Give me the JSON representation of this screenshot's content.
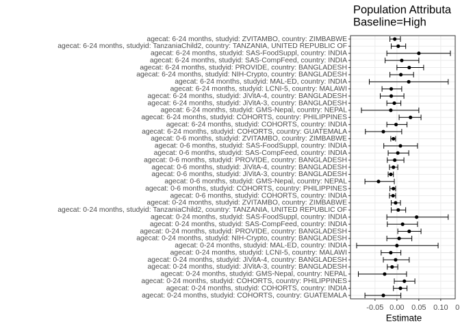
{
  "chart_data": {
    "type": "forest",
    "title": "Population Attributa",
    "subtitle": "Baseline=High",
    "xlabel": "Estimate",
    "categories": [
      "agecat: 6-24 months, studyid: ZVITAMBO, country: ZIMBABWE",
      "agecat: 6-24 months, studyid: TanzaniaChild2, country: TANZANIA, UNITED REPUBLIC OF",
      "agecat: 6-24 months, studyid: SAS-FoodSuppl, country: INDIA",
      "agecat: 6-24 months, studyid: SAS-CompFeed, country: INDIA",
      "agecat: 6-24 months, studyid: PROVIDE, country: BANGLADESH",
      "agecat: 6-24 months, studyid: NIH-Crypto, country: BANGLADESH",
      "agecat: 6-24 months, studyid: MAL-ED, country: INDIA",
      "agecat: 6-24 months, studyid: LCNI-5, country: MALAWI",
      "agecat: 6-24 months, studyid: JiVitA-4, country: BANGLADESH",
      "agecat: 6-24 months, studyid: JiVitA-3, country: BANGLADESH",
      "agecat: 6-24 months, studyid: GMS-Nepal, country: NEPAL",
      "agecat: 6-24 months, studyid: COHORTS, country: PHILIPPINES",
      "agecat: 6-24 months, studyid: COHORTS, country: INDIA",
      "agecat: 6-24 months, studyid: COHORTS, country: GUATEMALA",
      "agecat: 0-6 months, studyid: ZVITAMBO, country: ZIMBABWE",
      "agecat: 0-6 months, studyid: SAS-FoodSuppl, country: INDIA",
      "agecat: 0-6 months, studyid: SAS-CompFeed, country: INDIA",
      "agecat: 0-6 months, studyid: PROVIDE, country: BANGLADESH",
      "agecat: 0-6 months, studyid: JiVitA-4, country: BANGLADESH",
      "agecat: 0-6 months, studyid: JiVitA-3, country: BANGLADESH",
      "agecat: 0-6 months, studyid: GMS-Nepal, country: NEPAL",
      "agecat: 0-6 months, studyid: COHORTS, country: PHILIPPINES",
      "agecat: 0-6 months, studyid: COHORTS, country: INDIA",
      "agecat: 0-24 months, studyid: ZVITAMBO, country: ZIMBABWE",
      "agecat: 0-24 months, studyid: TanzaniaChild2, country: TANZANIA, UNITED REPUBLIC OF",
      "agecat: 0-24 months, studyid: SAS-FoodSuppl, country: INDIA",
      "agecat: 0-24 months, studyid: SAS-CompFeed, country: INDIA",
      "agecat: 0-24 months, studyid: PROVIDE, country: BANGLADESH",
      "agecat: 0-24 months, studyid: NIH-Crypto, country: BANGLADESH",
      "agecat: 0-24 months, studyid: MAL-ED, country: INDIA",
      "agecat: 0-24 months, studyid: LCNI-5, country: MALAWI",
      "agecat: 0-24 months, studyid: JiVitA-4, country: BANGLADESH",
      "agecat: 0-24 months, studyid: JiVitA-3, country: BANGLADESH",
      "agecat: 0-24 months, studyid: GMS-Nepal, country: NEPAL",
      "agecat: 0-24 months, studyid: COHORTS, country: PHILIPPINES",
      "agecat: 0-24 months, studyid: COHORTS, country: INDIA",
      "agecat: 0-24 months, studyid: COHORTS, country: GUATEMALA"
    ],
    "values": [
      -0.005,
      0.003,
      0.05,
      0.011,
      0.028,
      0.009,
      0.027,
      -0.013,
      -0.013,
      -0.006,
      -0.014,
      0.031,
      -0.002,
      -0.031,
      -0.008,
      0.008,
      0.002,
      -0.005,
      -0.008,
      -0.014,
      -0.042,
      -0.008,
      -0.009,
      -0.003,
      0.003,
      0.045,
      0.013,
      0.028,
      0.005,
      0,
      -0.014,
      -0.003,
      -0.011,
      -0.028,
      0.017,
      0.008,
      -0.031
    ],
    "lower": [
      -0.016,
      -0.013,
      -0.023,
      -0.027,
      0,
      -0.016,
      -0.063,
      -0.034,
      -0.038,
      -0.023,
      -0.081,
      0.005,
      -0.023,
      -0.072,
      -0.014,
      -0.03,
      -0.02,
      -0.022,
      -0.017,
      -0.02,
      -0.073,
      -0.016,
      -0.017,
      -0.013,
      -0.013,
      -0.023,
      -0.022,
      0.002,
      -0.023,
      -0.092,
      -0.036,
      -0.031,
      -0.022,
      -0.088,
      -0.006,
      -0.008,
      -0.073
    ],
    "upper": [
      0.008,
      0.02,
      0.122,
      0.05,
      0.061,
      0.038,
      0.117,
      0.011,
      0.016,
      0.009,
      0.05,
      0.055,
      0.023,
      0.011,
      -0.003,
      0.047,
      0.027,
      0.016,
      0.002,
      -0.008,
      -0.006,
      -0.003,
      -0.003,
      0.008,
      0.02,
      0.117,
      0.047,
      0.055,
      0.034,
      0.094,
      0.009,
      0.028,
      0.002,
      0.022,
      0.041,
      0.023,
      0.009
    ],
    "color": "#000000",
    "xlim": [
      -0.106,
      0.133
    ],
    "xticks": [
      -0.05,
      {
        "value": 0,
        "label": "0.00"
      },
      0.05,
      {
        "value": 0.1,
        "label": "0.10"
      },
      0.15
    ],
    "grid": true
  }
}
